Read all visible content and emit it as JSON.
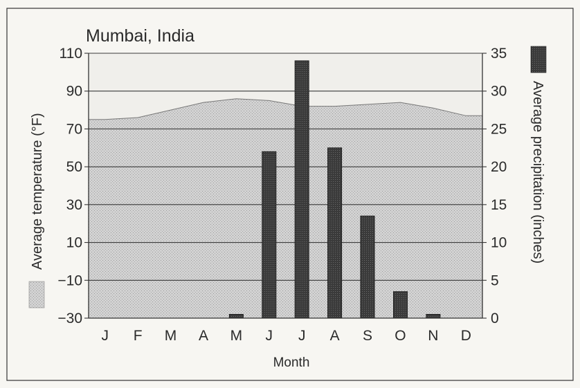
{
  "chart_data": {
    "type": "bar",
    "title": "Mumbai, India",
    "xlabel": "Month",
    "ylabel_left": "Average temperature (°F)",
    "ylabel_right": "Average precipitation (inches)",
    "categories": [
      "J",
      "F",
      "M",
      "A",
      "M",
      "J",
      "J",
      "A",
      "S",
      "O",
      "N",
      "D"
    ],
    "ylim_left": [
      -30,
      110
    ],
    "yticks_left": [
      "110",
      "90",
      "70",
      "50",
      "30",
      "10",
      "−10",
      "−30"
    ],
    "ylim_right": [
      0,
      35
    ],
    "yticks_right": [
      "35",
      "30",
      "25",
      "20",
      "15",
      "10",
      "5",
      "0"
    ],
    "grid": true,
    "series": [
      {
        "name": "Average temperature (°F)",
        "type": "area",
        "axis": "left",
        "color": "#b8b8b8",
        "values": [
          75,
          76,
          80,
          84,
          86,
          85,
          82,
          82,
          83,
          84,
          81,
          77
        ]
      },
      {
        "name": "Average precipitation (inches)",
        "type": "bar",
        "axis": "right",
        "color": "#3a3a3a",
        "values": [
          0,
          0,
          0,
          0,
          0.5,
          22,
          34,
          22.5,
          13.5,
          3.5,
          0.5,
          0
        ]
      }
    ]
  }
}
